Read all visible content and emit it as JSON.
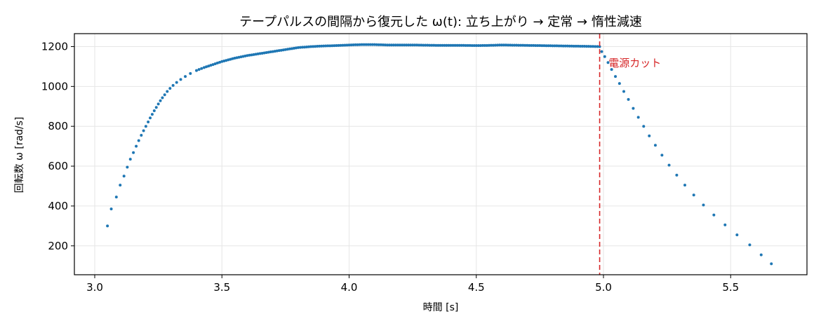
{
  "chart_data": {
    "type": "scatter",
    "title": "テープパルスの間隔から復元した ω(t): 立ち上がり → 定常 → 惰性減速",
    "xlabel": "時間 [s]",
    "ylabel": "回転数 ω [rad/s]",
    "xlim": [
      2.92,
      5.8
    ],
    "ylim": [
      55,
      1265
    ],
    "xticks": [
      3.0,
      3.5,
      4.0,
      4.5,
      5.0,
      5.5
    ],
    "xtick_labels": [
      "3.0",
      "3.5",
      "4.0",
      "4.5",
      "5.0",
      "5.5"
    ],
    "yticks": [
      200,
      400,
      600,
      800,
      1000,
      1200
    ],
    "ytick_labels": [
      "200",
      "400",
      "600",
      "800",
      "1000",
      "1200"
    ],
    "grid": true,
    "series_color": "#1f77b4",
    "points": {
      "x": [
        3.05,
        3.065,
        3.085,
        3.1,
        3.115,
        3.128,
        3.14,
        3.152,
        3.163,
        3.173,
        3.183,
        3.192,
        3.201,
        3.21,
        3.218,
        3.226,
        3.234,
        3.242,
        3.25,
        3.258,
        3.266,
        3.275,
        3.285,
        3.296,
        3.308,
        3.322,
        3.338,
        3.356,
        3.376,
        3.4,
        3.43,
        3.465,
        3.5,
        3.55,
        3.6,
        3.65,
        3.7,
        3.75,
        3.8,
        3.85,
        3.9,
        3.95,
        4.0,
        4.05,
        4.1,
        4.15,
        4.2,
        4.25,
        4.3,
        4.35,
        4.4,
        4.45,
        4.5,
        4.55,
        4.6,
        4.65,
        4.7,
        4.75,
        4.8,
        4.85,
        4.9,
        4.95,
        4.985,
        4.993,
        5.005,
        5.018,
        5.032,
        5.047,
        5.063,
        5.08,
        5.098,
        5.117,
        5.137,
        5.158,
        5.18,
        5.204,
        5.23,
        5.258,
        5.288,
        5.32,
        5.355,
        5.393,
        5.434,
        5.478,
        5.525,
        5.575,
        5.62,
        5.66
      ],
      "y": [
        300,
        385,
        445,
        505,
        550,
        595,
        635,
        668,
        700,
        728,
        755,
        778,
        800,
        822,
        842,
        860,
        878,
        895,
        912,
        928,
        943,
        958,
        975,
        990,
        1005,
        1020,
        1035,
        1050,
        1065,
        1080,
        1095,
        1110,
        1125,
        1142,
        1155,
        1165,
        1175,
        1185,
        1195,
        1200,
        1203,
        1205,
        1208,
        1210,
        1210,
        1208,
        1208,
        1208,
        1207,
        1206,
        1206,
        1206,
        1205,
        1206,
        1208,
        1207,
        1206,
        1205,
        1204,
        1203,
        1202,
        1201,
        1200,
        1175,
        1150,
        1120,
        1085,
        1050,
        1015,
        975,
        935,
        890,
        845,
        800,
        752,
        705,
        655,
        605,
        555,
        505,
        455,
        405,
        355,
        305,
        255,
        205,
        155,
        110
      ]
    },
    "vline": {
      "x": 4.985,
      "color": "#d62728",
      "style": "dashed"
    },
    "annotation": {
      "text": "電源カット",
      "x": 5.02,
      "y": 1100,
      "color": "#d62728"
    }
  }
}
